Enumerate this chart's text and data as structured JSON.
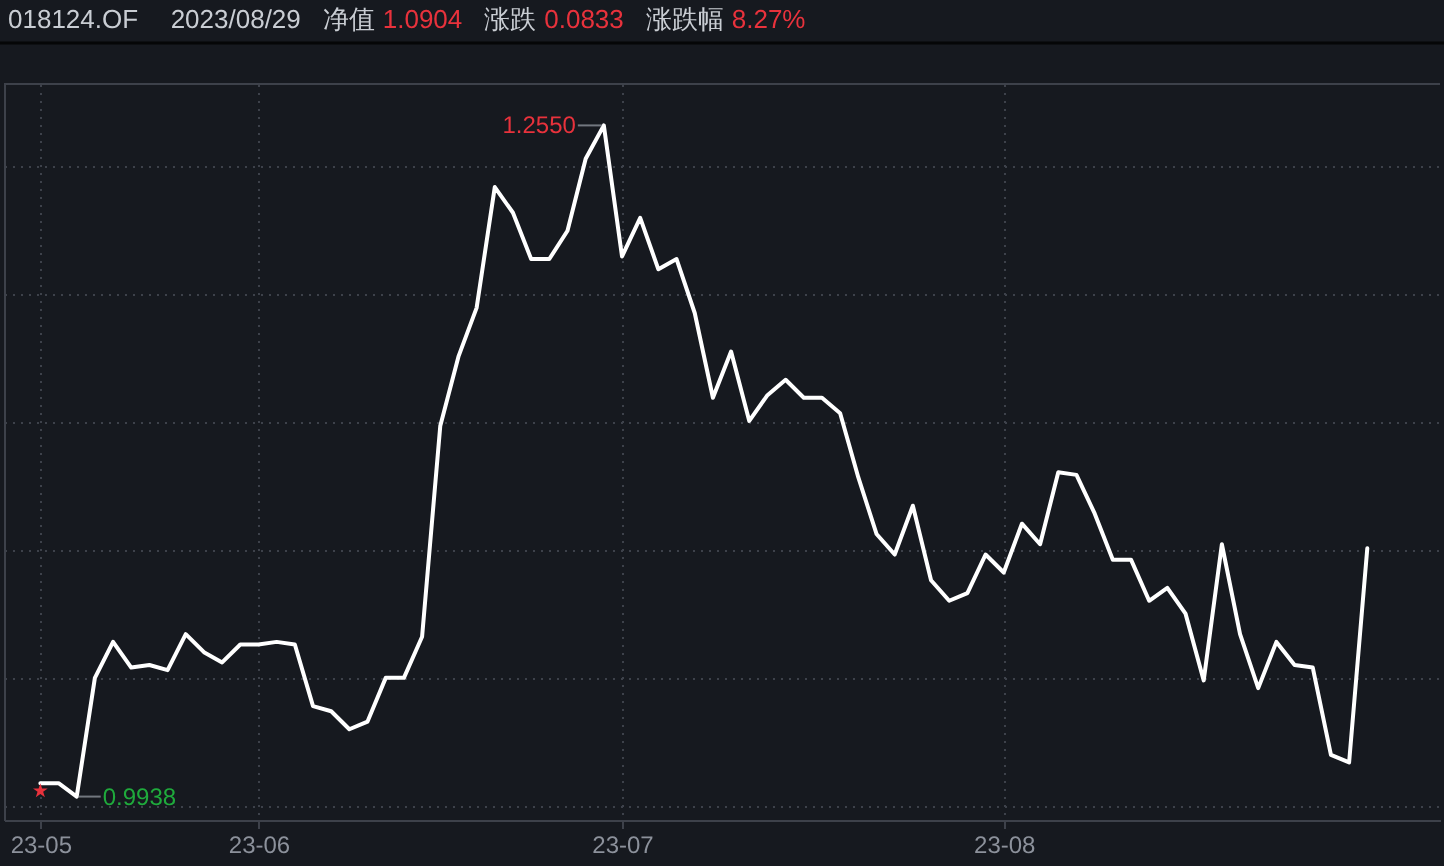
{
  "chart_data": {
    "type": "line",
    "title": "018124.OF",
    "annotations": [
      "2023/08/29",
      "净值",
      "1.0904",
      "涨跌",
      "0.0833",
      "涨跌幅",
      "8.27%"
    ],
    "categories": [
      "23-05",
      null,
      null,
      null,
      null,
      null,
      null,
      null,
      null,
      null,
      null,
      null,
      "23-06",
      null,
      null,
      null,
      null,
      null,
      null,
      null,
      null,
      null,
      null,
      null,
      null,
      null,
      null,
      null,
      null,
      null,
      null,
      null,
      "23-07",
      null,
      null,
      null,
      null,
      null,
      null,
      null,
      null,
      null,
      null,
      null,
      null,
      null,
      null,
      null,
      null,
      null,
      null,
      null,
      null,
      "23-08",
      null,
      null,
      null,
      null,
      null,
      null,
      null,
      null,
      null,
      null,
      null,
      null,
      null,
      null,
      null,
      null,
      null,
      null,
      null,
      null
    ],
    "series": [
      {
        "color": "#ffffff",
        "values": [
          0.999,
          0.999,
          0.9938,
          1.04,
          1.054,
          1.044,
          1.045,
          1.043,
          1.057,
          1.05,
          1.046,
          1.053,
          1.053,
          1.054,
          1.053,
          1.029,
          1.027,
          1.02,
          1.023,
          1.04,
          1.04,
          1.056,
          1.138,
          1.165,
          1.184,
          1.231,
          1.221,
          1.203,
          1.203,
          1.214,
          1.242,
          1.255,
          1.204,
          1.219,
          1.199,
          1.203,
          1.182,
          1.149,
          1.167,
          1.14,
          1.15,
          1.156,
          1.149,
          1.149,
          1.143,
          1.118,
          1.096,
          1.088,
          1.107,
          1.078,
          1.07,
          1.073,
          1.088,
          1.081,
          1.1,
          1.092,
          1.12,
          1.119,
          1.104,
          1.086,
          1.086,
          1.07,
          1.075,
          1.065,
          1.039,
          1.092,
          1.057,
          1.036,
          1.054,
          1.045,
          1.044,
          1.01,
          1.0071,
          1.0904
        ],
        "value_labels": [
          null,
          null,
          "0.9938",
          null,
          null,
          null,
          null,
          null,
          null,
          null,
          null,
          null,
          null,
          null,
          null,
          null,
          null,
          null,
          null,
          null,
          null,
          null,
          null,
          null,
          null,
          null,
          null,
          null,
          null,
          null,
          null,
          "1.2550",
          null,
          null,
          null,
          null,
          null,
          null,
          null,
          null,
          null,
          null,
          null,
          null,
          null,
          null,
          null,
          null,
          null,
          null,
          null,
          null,
          null,
          null,
          null,
          null,
          null,
          null,
          null,
          null,
          null,
          null,
          null,
          null,
          null,
          null,
          null,
          null,
          null,
          null,
          null,
          null,
          null,
          null
        ]
      },
      {
        "type": "scatter",
        "marker": "star",
        "color": "#e8323c",
        "values": [
          0.996,
          null,
          null,
          null,
          null,
          null,
          null,
          null,
          null,
          null,
          null,
          null,
          null,
          null,
          null,
          null,
          null,
          null,
          null,
          null,
          null,
          null,
          null,
          null,
          null,
          null,
          null,
          null,
          null,
          null,
          null,
          null,
          null,
          null,
          null,
          null,
          null,
          null,
          null,
          null,
          null,
          null,
          null,
          null,
          null,
          null,
          null,
          null,
          null,
          null,
          null,
          null,
          null,
          null,
          null,
          null,
          null,
          null,
          null,
          null,
          null,
          null,
          null,
          null,
          null,
          null,
          null,
          null,
          null,
          null,
          null,
          null,
          null,
          null
        ]
      }
    ],
    "tick_labels": "x",
    "grid": true,
    "marker": "none",
    "line_style": "solid"
  }
}
